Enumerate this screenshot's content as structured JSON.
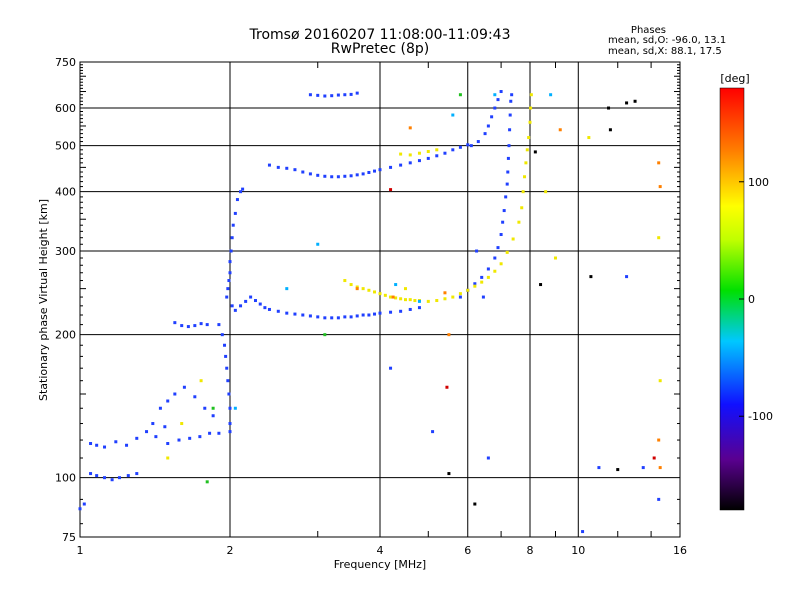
{
  "title_line1": "Tromsø 20160207 11:08:00-11:09:43",
  "title_line2": "RwPretec (8p)",
  "stats": {
    "header": "Phases",
    "line1": "mean, sd,O: -96.0, 13.1",
    "line2": "mean, sd,X:  88.1, 17.5"
  },
  "colorbar": {
    "label": "[deg]",
    "min": -180,
    "max": 180,
    "ticks": [
      100,
      0,
      -100
    ],
    "tick_labels": [
      "100",
      "0",
      "-100"
    ]
  },
  "chart_data": {
    "type": "scatter",
    "xlabel": "Frequency [MHz]",
    "ylabel": "Stationary phase Virtual Height [km]",
    "xscale": "log",
    "yscale": "log",
    "xlim": [
      1,
      16
    ],
    "ylim": [
      75,
      750
    ],
    "xticks": [
      1,
      2,
      4,
      6,
      8,
      10,
      16
    ],
    "xtick_labels": [
      "1",
      "2",
      "4",
      "6",
      "8",
      "10",
      "16"
    ],
    "yticks": [
      75,
      100,
      200,
      300,
      400,
      500,
      600,
      750
    ],
    "ytick_labels": [
      "75",
      "100",
      "200",
      "300",
      "400",
      "500",
      "600",
      "750"
    ],
    "grid": true,
    "series": [
      {
        "mode": "O",
        "color": "#2040ff",
        "points": [
          [
            1.0,
            86
          ],
          [
            1.02,
            88
          ],
          [
            1.05,
            102
          ],
          [
            1.08,
            101
          ],
          [
            1.12,
            100
          ],
          [
            1.16,
            99
          ],
          [
            1.2,
            100
          ],
          [
            1.25,
            101
          ],
          [
            1.3,
            102
          ],
          [
            1.05,
            118
          ],
          [
            1.08,
            117
          ],
          [
            1.12,
            116
          ],
          [
            1.18,
            119
          ],
          [
            1.24,
            117
          ],
          [
            1.3,
            121
          ],
          [
            1.36,
            125
          ],
          [
            1.42,
            122
          ],
          [
            1.5,
            118
          ],
          [
            1.58,
            120
          ],
          [
            1.66,
            121
          ],
          [
            1.74,
            122
          ],
          [
            1.82,
            124
          ],
          [
            1.9,
            124
          ],
          [
            1.45,
            140
          ],
          [
            1.5,
            145
          ],
          [
            1.55,
            150
          ],
          [
            1.62,
            155
          ],
          [
            1.7,
            148
          ],
          [
            1.78,
            140
          ],
          [
            1.85,
            135
          ],
          [
            1.4,
            130
          ],
          [
            1.48,
            128
          ],
          [
            1.55,
            212
          ],
          [
            1.6,
            209
          ],
          [
            1.65,
            208
          ],
          [
            1.7,
            209
          ],
          [
            1.75,
            211
          ],
          [
            1.8,
            210
          ],
          [
            1.9,
            210
          ],
          [
            1.93,
            200
          ],
          [
            1.95,
            190
          ],
          [
            1.96,
            180
          ],
          [
            1.97,
            170
          ],
          [
            1.98,
            160
          ],
          [
            1.99,
            150
          ],
          [
            2.0,
            140
          ],
          [
            2.0,
            130
          ],
          [
            2.0,
            125
          ],
          [
            1.97,
            240
          ],
          [
            1.98,
            250
          ],
          [
            1.99,
            260
          ],
          [
            2.0,
            270
          ],
          [
            2.0,
            285
          ],
          [
            2.01,
            300
          ],
          [
            2.02,
            320
          ],
          [
            2.03,
            340
          ],
          [
            2.05,
            360
          ],
          [
            2.07,
            385
          ],
          [
            2.1,
            400
          ],
          [
            2.12,
            405
          ],
          [
            2.02,
            230
          ],
          [
            2.05,
            225
          ],
          [
            2.1,
            230
          ],
          [
            2.15,
            235
          ],
          [
            2.2,
            240
          ],
          [
            2.25,
            236
          ],
          [
            2.3,
            232
          ],
          [
            2.35,
            228
          ],
          [
            2.4,
            226
          ],
          [
            2.5,
            224
          ],
          [
            2.6,
            222
          ],
          [
            2.7,
            221
          ],
          [
            2.8,
            220
          ],
          [
            2.9,
            219
          ],
          [
            3.0,
            218
          ],
          [
            3.1,
            217
          ],
          [
            3.2,
            217
          ],
          [
            3.3,
            217
          ],
          [
            3.4,
            218
          ],
          [
            3.5,
            218
          ],
          [
            3.6,
            219
          ],
          [
            3.7,
            220
          ],
          [
            3.8,
            220
          ],
          [
            3.9,
            221
          ],
          [
            4.0,
            222
          ],
          [
            4.2,
            223
          ],
          [
            4.4,
            224
          ],
          [
            4.6,
            226
          ],
          [
            4.8,
            228
          ],
          [
            5.8,
            240
          ],
          [
            6.0,
            248
          ],
          [
            6.2,
            256
          ],
          [
            6.4,
            264
          ],
          [
            6.6,
            275
          ],
          [
            6.8,
            290
          ],
          [
            6.9,
            305
          ],
          [
            7.0,
            325
          ],
          [
            7.05,
            345
          ],
          [
            7.1,
            365
          ],
          [
            7.15,
            390
          ],
          [
            7.2,
            415
          ],
          [
            7.22,
            440
          ],
          [
            7.24,
            470
          ],
          [
            7.26,
            500
          ],
          [
            7.28,
            540
          ],
          [
            7.3,
            580
          ],
          [
            7.32,
            620
          ],
          [
            7.35,
            640
          ],
          [
            2.4,
            455
          ],
          [
            2.5,
            450
          ],
          [
            2.6,
            448
          ],
          [
            2.7,
            445
          ],
          [
            2.8,
            440
          ],
          [
            2.9,
            436
          ],
          [
            3.0,
            433
          ],
          [
            3.1,
            431
          ],
          [
            3.2,
            430
          ],
          [
            3.3,
            430
          ],
          [
            3.4,
            431
          ],
          [
            3.5,
            432
          ],
          [
            3.6,
            434
          ],
          [
            3.7,
            436
          ],
          [
            3.8,
            439
          ],
          [
            3.9,
            442
          ],
          [
            4.0,
            445
          ],
          [
            4.2,
            450
          ],
          [
            4.4,
            455
          ],
          [
            4.6,
            460
          ],
          [
            4.8,
            465
          ],
          [
            5.0,
            470
          ],
          [
            5.2,
            476
          ],
          [
            5.4,
            482
          ],
          [
            5.6,
            490
          ],
          [
            5.8,
            496
          ],
          [
            6.0,
            502
          ],
          [
            2.9,
            640
          ],
          [
            3.0,
            638
          ],
          [
            3.1,
            636
          ],
          [
            3.2,
            637
          ],
          [
            3.3,
            639
          ],
          [
            3.4,
            640
          ],
          [
            3.5,
            641
          ],
          [
            3.6,
            645
          ],
          [
            6.1,
            500
          ],
          [
            6.3,
            510
          ],
          [
            6.5,
            530
          ],
          [
            6.6,
            550
          ],
          [
            6.7,
            575
          ],
          [
            6.8,
            600
          ],
          [
            6.9,
            625
          ],
          [
            7.0,
            650
          ],
          [
            6.45,
            240
          ],
          [
            6.25,
            300
          ],
          [
            4.2,
            170
          ],
          [
            5.1,
            125
          ],
          [
            6.6,
            110
          ],
          [
            11.0,
            105
          ],
          [
            12.5,
            265
          ],
          [
            13.5,
            105
          ],
          [
            10.2,
            77
          ],
          [
            14.5,
            90
          ]
        ]
      },
      {
        "mode": "X",
        "color": "#f0e800",
        "points": [
          [
            3.4,
            260
          ],
          [
            3.5,
            255
          ],
          [
            3.6,
            252
          ],
          [
            3.7,
            250
          ],
          [
            3.8,
            248
          ],
          [
            3.9,
            246
          ],
          [
            4.0,
            244
          ],
          [
            4.1,
            242
          ],
          [
            4.2,
            240
          ],
          [
            4.3,
            239
          ],
          [
            4.4,
            238
          ],
          [
            4.5,
            237
          ],
          [
            4.6,
            237
          ],
          [
            4.7,
            236
          ],
          [
            4.8,
            236
          ],
          [
            5.0,
            235
          ],
          [
            5.2,
            236
          ],
          [
            5.4,
            238
          ],
          [
            5.6,
            240
          ],
          [
            5.8,
            244
          ],
          [
            6.0,
            248
          ],
          [
            6.2,
            253
          ],
          [
            6.4,
            258
          ],
          [
            6.6,
            264
          ],
          [
            6.8,
            272
          ],
          [
            7.0,
            282
          ],
          [
            7.2,
            298
          ],
          [
            7.4,
            318
          ],
          [
            7.6,
            345
          ],
          [
            7.7,
            370
          ],
          [
            7.75,
            400
          ],
          [
            7.8,
            430
          ],
          [
            7.85,
            460
          ],
          [
            7.9,
            490
          ],
          [
            7.95,
            520
          ],
          [
            8.0,
            560
          ],
          [
            8.02,
            600
          ],
          [
            8.05,
            640
          ],
          [
            4.4,
            480
          ],
          [
            4.6,
            478
          ],
          [
            4.8,
            482
          ],
          [
            5.0,
            486
          ],
          [
            5.2,
            490
          ],
          [
            1.6,
            130
          ],
          [
            1.75,
            160
          ],
          [
            1.5,
            110
          ],
          [
            4.5,
            250
          ],
          [
            8.6,
            400
          ],
          [
            10.5,
            520
          ],
          [
            14.5,
            320
          ],
          [
            14.6,
            160
          ],
          [
            9.0,
            290
          ]
        ]
      },
      {
        "mode": "other",
        "color": "#ff8000",
        "points": [
          [
            4.6,
            545
          ],
          [
            5.5,
            200
          ],
          [
            14.6,
            105
          ],
          [
            14.5,
            120
          ],
          [
            14.6,
            410
          ],
          [
            14.5,
            460
          ],
          [
            9.2,
            540
          ],
          [
            5.4,
            245
          ],
          [
            4.25,
            240
          ],
          [
            3.6,
            250
          ]
        ]
      },
      {
        "mode": "other",
        "color": "#00b0ff",
        "points": [
          [
            3.0,
            310
          ],
          [
            5.6,
            580
          ],
          [
            8.8,
            640
          ],
          [
            6.8,
            640
          ],
          [
            4.8,
            235
          ],
          [
            2.6,
            250
          ],
          [
            4.3,
            255
          ],
          [
            2.05,
            140
          ]
        ]
      },
      {
        "mode": "other",
        "color": "#20c020",
        "points": [
          [
            5.8,
            640
          ],
          [
            1.8,
            98
          ],
          [
            1.85,
            140
          ],
          [
            3.1,
            200
          ]
        ]
      },
      {
        "mode": "other",
        "color": "#d00000",
        "points": [
          [
            5.45,
            155
          ],
          [
            14.2,
            110
          ],
          [
            4.2,
            404
          ]
        ]
      },
      {
        "mode": "other",
        "color": "#000000",
        "points": [
          [
            5.5,
            102
          ],
          [
            6.2,
            88
          ],
          [
            12.0,
            104
          ],
          [
            13.0,
            620
          ],
          [
            11.5,
            600
          ],
          [
            8.4,
            255
          ],
          [
            10.6,
            265
          ],
          [
            12.5,
            615
          ],
          [
            8.2,
            485
          ],
          [
            11.6,
            540
          ]
        ]
      }
    ]
  }
}
